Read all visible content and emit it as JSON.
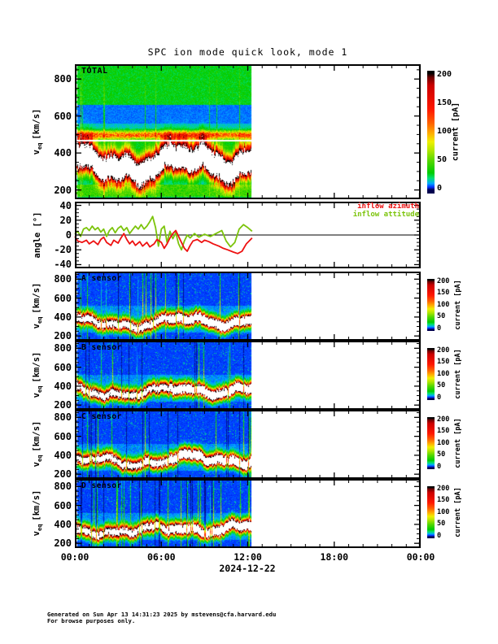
{
  "title": "SPC ion mode quick look, mode 1",
  "footer": {
    "line1": "Generated on Sun Apr 13 14:31:23 2025 by mstevens@cfa.harvard.edu",
    "line2": "For browse purposes only."
  },
  "time_axis": {
    "tick_hours": [
      0,
      6,
      12,
      18,
      24
    ],
    "tick_labels": [
      "00:00",
      "06:00",
      "12:00",
      "18:00",
      "00:00"
    ],
    "date_label": "2024-12-22",
    "span_hours": 24,
    "minor_step_hours": 1
  },
  "velocity_axis": {
    "prefix": "v",
    "sub": "eq",
    "unit": "[km/s]",
    "ticks": [
      200,
      400,
      600,
      800
    ],
    "range": [
      150,
      880
    ],
    "minor_step": 50
  },
  "angle_axis": {
    "label": "angle [°]",
    "ticks": [
      40,
      20,
      0,
      -20,
      -40
    ],
    "range": [
      -45,
      45
    ],
    "minor_step": 5,
    "zero_line": 0
  },
  "colorbar": {
    "unit_label": "current [pA]",
    "ticks": [
      200,
      150,
      100,
      50,
      0
    ],
    "max": 200
  },
  "legend": [
    {
      "label": "inflow azimuth",
      "color": "#ee1111"
    },
    {
      "label": "inflow attitude",
      "color": "#7cc40b"
    }
  ],
  "colormap": {
    "stops": [
      [
        0,
        "#000050"
      ],
      [
        5,
        "#0030ff"
      ],
      [
        12,
        "#00a8ff"
      ],
      [
        22,
        "#00e070"
      ],
      [
        32,
        "#00cc00"
      ],
      [
        55,
        "#58d800"
      ],
      [
        75,
        "#b8e800"
      ],
      [
        90,
        "#f0f000"
      ],
      [
        105,
        "#ffb000"
      ],
      [
        125,
        "#ff6000"
      ],
      [
        150,
        "#ff1800"
      ],
      [
        195,
        "#cc0000"
      ],
      [
        210,
        "#700000"
      ],
      [
        218,
        "#000000"
      ]
    ],
    "saturation_color": "#ffffff"
  },
  "panels": [
    {
      "id": "total",
      "label": "TOTAL"
    },
    {
      "id": "angle",
      "label": ""
    },
    {
      "id": "a",
      "label": "A sensor"
    },
    {
      "id": "b",
      "label": "B sensor"
    },
    {
      "id": "c",
      "label": "C sensor"
    },
    {
      "id": "d",
      "label": "D sensor"
    }
  ],
  "chart_data": [
    {
      "panel_id": "total",
      "type": "heatmap",
      "title": "TOTAL",
      "x_axis": "time UTC on 2024-12-22 [hh:mm]",
      "x_range_hours": [
        0,
        24
      ],
      "y_axis": "v_eq [km/s]",
      "y_range": [
        150,
        880
      ],
      "z_axis": "current [pA]",
      "z_range": [
        0,
        200
      ],
      "data_end_hour": 12.25,
      "background_bands_pA": [
        [
          660,
          880,
          32
        ],
        [
          560,
          660,
          9
        ],
        [
          525,
          560,
          16
        ],
        [
          430,
          525,
          26
        ],
        [
          230,
          430,
          18
        ],
        [
          165,
          230,
          45
        ],
        [
          150,
          165,
          22
        ]
      ],
      "stripe": {
        "v": 497,
        "sigma": 15,
        "amp_pA": 100
      },
      "white_line_v": 470,
      "beam": {
        "v_base": 332,
        "components": [
          [
            34,
            0.9,
            1.3
          ],
          [
            22,
            2.2,
            0.4
          ],
          [
            12,
            4.9,
            2.2
          ]
        ],
        "jitter": 12,
        "sigma_up": 55,
        "sigma_dn": 48,
        "amp_pA": 430,
        "shift_hour": 6.5,
        "shift_dv": 18,
        "post_shift_amp_factor": 1.05
      },
      "streaks": {
        "prob": 0.05,
        "amp_range": [
          18,
          55
        ]
      },
      "dropouts": {
        "prob": 0,
        "factor": 1
      },
      "speckle": {
        "prob": 0,
        "add": 0
      },
      "seed": 7
    },
    {
      "panel_id": "angle",
      "type": "line",
      "x_axis": "time UTC on 2024-12-22 [hh:mm]",
      "x_range_hours": [
        0,
        24
      ],
      "y_axis": "angle [deg]",
      "y_range": [
        -45,
        45
      ],
      "zero_line": 0,
      "data_end_hour": 12.3,
      "series": [
        {
          "name": "inflow azimuth",
          "color": "#ee1111",
          "points": [
            [
              0,
              -2
            ],
            [
              0.2,
              -8
            ],
            [
              0.5,
              -10
            ],
            [
              0.8,
              -7
            ],
            [
              1.0,
              -12
            ],
            [
              1.3,
              -8
            ],
            [
              1.6,
              -13
            ],
            [
              1.8,
              -6
            ],
            [
              2.0,
              -3
            ],
            [
              2.2,
              -10
            ],
            [
              2.5,
              -14
            ],
            [
              2.7,
              -7
            ],
            [
              3.0,
              -11
            ],
            [
              3.2,
              -4
            ],
            [
              3.4,
              2
            ],
            [
              3.6,
              -6
            ],
            [
              3.8,
              -12
            ],
            [
              4.0,
              -8
            ],
            [
              4.2,
              -14
            ],
            [
              4.5,
              -9
            ],
            [
              4.7,
              -15
            ],
            [
              5.0,
              -10
            ],
            [
              5.2,
              -16
            ],
            [
              5.5,
              -12
            ],
            [
              5.7,
              -6
            ],
            [
              6.0,
              -10
            ],
            [
              6.2,
              -18
            ],
            [
              6.4,
              -12
            ],
            [
              6.6,
              -4
            ],
            [
              6.8,
              2
            ],
            [
              7.0,
              6
            ],
            [
              7.2,
              -2
            ],
            [
              7.4,
              -10
            ],
            [
              7.6,
              -18
            ],
            [
              7.8,
              -22
            ],
            [
              8.0,
              -14
            ],
            [
              8.2,
              -8
            ],
            [
              8.5,
              -6
            ],
            [
              8.8,
              -10
            ],
            [
              9.0,
              -7
            ],
            [
              9.3,
              -9
            ],
            [
              9.6,
              -12
            ],
            [
              10.0,
              -15
            ],
            [
              10.3,
              -18
            ],
            [
              10.6,
              -20
            ],
            [
              11.0,
              -23
            ],
            [
              11.3,
              -25
            ],
            [
              11.6,
              -22
            ],
            [
              11.9,
              -12
            ],
            [
              12.1,
              -8
            ],
            [
              12.3,
              -4
            ]
          ]
        },
        {
          "name": "inflow attitude",
          "color": "#7cc40b",
          "points": [
            [
              0,
              1
            ],
            [
              0.2,
              5
            ],
            [
              0.4,
              -2
            ],
            [
              0.6,
              8
            ],
            [
              0.8,
              10
            ],
            [
              1.0,
              6
            ],
            [
              1.2,
              12
            ],
            [
              1.4,
              7
            ],
            [
              1.6,
              10
            ],
            [
              1.8,
              4
            ],
            [
              2.0,
              8
            ],
            [
              2.2,
              -2
            ],
            [
              2.4,
              6
            ],
            [
              2.6,
              10
            ],
            [
              2.8,
              3
            ],
            [
              3.0,
              9
            ],
            [
              3.2,
              12
            ],
            [
              3.4,
              6
            ],
            [
              3.6,
              10
            ],
            [
              3.8,
              2
            ],
            [
              4.0,
              7
            ],
            [
              4.2,
              12
            ],
            [
              4.4,
              8
            ],
            [
              4.6,
              14
            ],
            [
              4.8,
              8
            ],
            [
              5.0,
              12
            ],
            [
              5.2,
              18
            ],
            [
              5.4,
              25
            ],
            [
              5.6,
              10
            ],
            [
              5.8,
              -15
            ],
            [
              6.0,
              8
            ],
            [
              6.2,
              12
            ],
            [
              6.4,
              -10
            ],
            [
              6.6,
              5
            ],
            [
              6.8,
              -5
            ],
            [
              7.0,
              3
            ],
            [
              7.2,
              -12
            ],
            [
              7.4,
              -20
            ],
            [
              7.6,
              -8
            ],
            [
              7.8,
              0
            ],
            [
              8.0,
              -4
            ],
            [
              8.3,
              2
            ],
            [
              8.6,
              -3
            ],
            [
              9.0,
              1
            ],
            [
              9.4,
              -2
            ],
            [
              9.8,
              2
            ],
            [
              10.2,
              6
            ],
            [
              10.5,
              -8
            ],
            [
              10.8,
              -16
            ],
            [
              11.1,
              -10
            ],
            [
              11.4,
              8
            ],
            [
              11.7,
              14
            ],
            [
              12.0,
              10
            ],
            [
              12.3,
              5
            ]
          ]
        }
      ]
    },
    {
      "panel_id": "a",
      "type": "heatmap",
      "title": "A sensor",
      "x_axis": "time UTC on 2024-12-22 [hh:mm]",
      "x_range_hours": [
        0,
        24
      ],
      "y_axis": "v_eq [km/s]",
      "y_range": [
        150,
        880
      ],
      "z_axis": "current [pA]",
      "z_range": [
        0,
        200
      ],
      "data_end_hour": 12.25,
      "background_bands_pA": [
        [
          520,
          880,
          6
        ],
        [
          240,
          520,
          10
        ],
        [
          150,
          240,
          6
        ]
      ],
      "beam": {
        "v_base": 332,
        "components": [
          [
            36,
            0.95,
            1.1
          ],
          [
            22,
            2.3,
            0.3
          ],
          [
            13,
            5.1,
            2.0
          ]
        ],
        "jitter": 14,
        "sigma_up": 42,
        "sigma_dn": 38,
        "amp_pA": 330,
        "shift_hour": 6.5,
        "shift_dv": 26,
        "post_shift_amp_factor": 1.3
      },
      "streaks": {
        "prob": 0.06,
        "amp_range": [
          25,
          80
        ]
      },
      "dropouts": {
        "prob": 0.05,
        "factor": 0.3
      },
      "speckle": {
        "prob": 0.055,
        "add": 13
      },
      "seed": 11
    },
    {
      "panel_id": "b",
      "type": "heatmap",
      "title": "B sensor",
      "x_axis": "time UTC on 2024-12-22 [hh:mm]",
      "x_range_hours": [
        0,
        24
      ],
      "y_axis": "v_eq [km/s]",
      "y_range": [
        150,
        880
      ],
      "z_axis": "current [pA]",
      "z_range": [
        0,
        200
      ],
      "data_end_hour": 12.25,
      "background_bands_pA": [
        [
          520,
          880,
          6
        ],
        [
          240,
          520,
          10
        ],
        [
          150,
          240,
          6
        ]
      ],
      "beam": {
        "v_base": 332,
        "components": [
          [
            36,
            0.95,
            1.9
          ],
          [
            22,
            2.3,
            1.1
          ],
          [
            13,
            5.1,
            0.6
          ]
        ],
        "jitter": 14,
        "sigma_up": 42,
        "sigma_dn": 38,
        "amp_pA": 330,
        "shift_hour": 6.5,
        "shift_dv": 26,
        "post_shift_amp_factor": 1.3
      },
      "streaks": {
        "prob": 0.06,
        "amp_range": [
          25,
          80
        ]
      },
      "dropouts": {
        "prob": 0.05,
        "factor": 0.3
      },
      "speckle": {
        "prob": 0.055,
        "add": 13
      },
      "seed": 23
    },
    {
      "panel_id": "c",
      "type": "heatmap",
      "title": "C sensor",
      "x_axis": "time UTC on 2024-12-22 [hh:mm]",
      "x_range_hours": [
        0,
        24
      ],
      "y_axis": "v_eq [km/s]",
      "y_range": [
        150,
        880
      ],
      "z_axis": "current [pA]",
      "z_range": [
        0,
        200
      ],
      "data_end_hour": 12.25,
      "background_bands_pA": [
        [
          520,
          880,
          6
        ],
        [
          240,
          520,
          10
        ],
        [
          150,
          240,
          6
        ]
      ],
      "beam": {
        "v_base": 332,
        "components": [
          [
            36,
            0.95,
            0.4
          ],
          [
            22,
            2.3,
            2.5
          ],
          [
            13,
            5.1,
            1.4
          ]
        ],
        "jitter": 14,
        "sigma_up": 42,
        "sigma_dn": 38,
        "amp_pA": 330,
        "shift_hour": 6.5,
        "shift_dv": 26,
        "post_shift_amp_factor": 1.3
      },
      "streaks": {
        "prob": 0.06,
        "amp_range": [
          25,
          80
        ]
      },
      "dropouts": {
        "prob": 0.05,
        "factor": 0.3
      },
      "speckle": {
        "prob": 0.055,
        "add": 13
      },
      "seed": 37
    },
    {
      "panel_id": "d",
      "type": "heatmap",
      "title": "D sensor",
      "x_axis": "time UTC on 2024-12-22 [hh:mm]",
      "x_range_hours": [
        0,
        24
      ],
      "y_axis": "v_eq [km/s]",
      "y_range": [
        150,
        880
      ],
      "z_axis": "current [pA]",
      "z_range": [
        0,
        200
      ],
      "data_end_hour": 12.25,
      "background_bands_pA": [
        [
          520,
          880,
          6
        ],
        [
          240,
          520,
          10
        ],
        [
          150,
          240,
          6
        ]
      ],
      "beam": {
        "v_base": 332,
        "components": [
          [
            36,
            0.95,
            2.6
          ],
          [
            22,
            2.3,
            1.8
          ],
          [
            13,
            5.1,
            3.0
          ]
        ],
        "jitter": 14,
        "sigma_up": 42,
        "sigma_dn": 38,
        "amp_pA": 330,
        "shift_hour": 6.5,
        "shift_dv": 26,
        "post_shift_amp_factor": 1.3
      },
      "streaks": {
        "prob": 0.06,
        "amp_range": [
          25,
          80
        ]
      },
      "dropouts": {
        "prob": 0.05,
        "factor": 0.3
      },
      "speckle": {
        "prob": 0.055,
        "add": 13
      },
      "seed": 51
    }
  ]
}
